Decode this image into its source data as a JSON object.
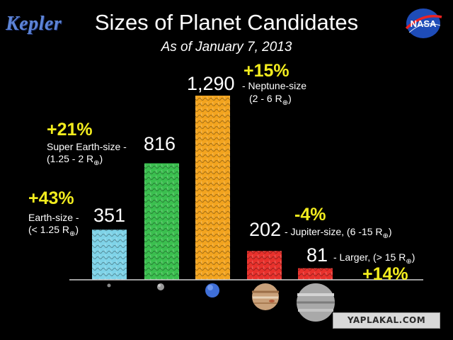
{
  "header": {
    "logo_text": "Kepler",
    "title": "Sizes of Planet Candidates",
    "subtitle": "As of January 7, 2013",
    "agency_logo_text": "NASA"
  },
  "chart_data": {
    "type": "bar",
    "categories": [
      "Earth-size",
      "Super Earth-size",
      "Neptune-size",
      "Jupiter-size",
      "Larger"
    ],
    "values": [
      351,
      816,
      1290,
      202,
      81
    ],
    "value_labels": [
      "351",
      "816",
      "1,290",
      "202",
      "81"
    ],
    "ranges": [
      "(< 1.25 R",
      "(1.25 - 2 R",
      "(2 - 6 R",
      "(6 -15 R",
      "(> 15 R"
    ],
    "range_suffix": ")",
    "earth_radius_symbol": "⊕",
    "changes": [
      "+43%",
      "+21%",
      "+15%",
      "-4%",
      "+14%"
    ],
    "colors": [
      "#7fd3e8",
      "#3bbf4f",
      "#f3a41f",
      "#e8312c",
      "#e8312c"
    ],
    "ylim": [
      0,
      1300
    ]
  },
  "labels": {
    "earth": {
      "desc": "Earth-size -",
      "num": "351",
      "range": "(< 1.25 R",
      "close": ")",
      "pct": "+43%"
    },
    "super": {
      "desc": "Super Earth-size -",
      "num": "816",
      "range": "(1.25 - 2 R",
      "close": ")",
      "pct": "+21%"
    },
    "neptune": {
      "num": "1,290",
      "desc": "- Neptune-size",
      "range": "(2 - 6 R",
      "close": ")",
      "pct": "+15%"
    },
    "jupiter": {
      "num": "202",
      "desc": "- Jupiter-size, (6 -15 R",
      "close": ")",
      "pct": "-4%"
    },
    "larger": {
      "num": "81",
      "desc": "- Larger, (> 15 R",
      "close": ")",
      "pct": "+14%"
    },
    "symbol": "⊕"
  },
  "watermark": "YAPLAKAL.COM"
}
